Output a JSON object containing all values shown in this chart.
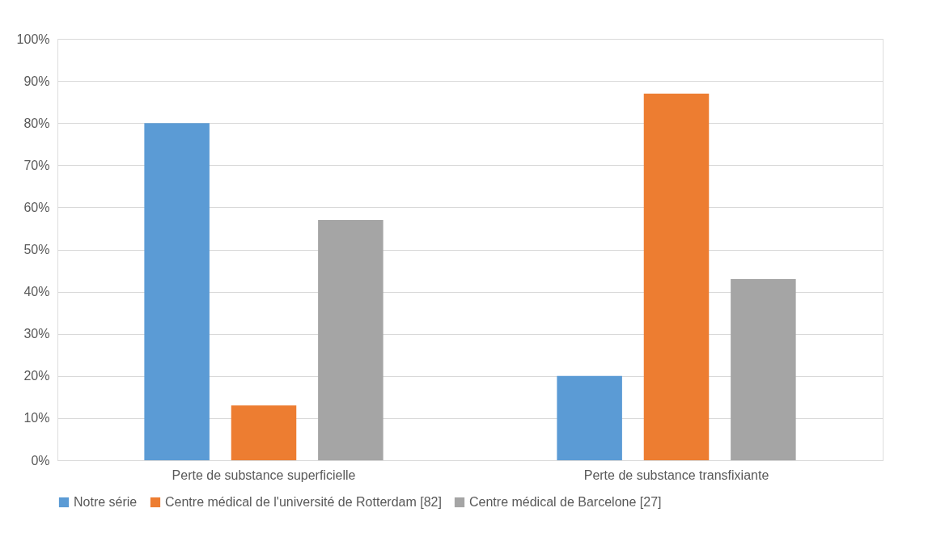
{
  "chart_data": {
    "type": "bar",
    "categories": [
      "Perte de substance superficielle",
      "Perte de substance transfixiante"
    ],
    "series": [
      {
        "name": "Notre série",
        "color": "#5b9bd5",
        "values": [
          80,
          20
        ]
      },
      {
        "name": "Centre médical de l'université de Rotterdam [82]",
        "color": "#ed7d31",
        "values": [
          13,
          87
        ]
      },
      {
        "name": "Centre médical de Barcelone [27]",
        "color": "#a5a5a5",
        "values": [
          57,
          43
        ]
      }
    ],
    "ylim": [
      0,
      100
    ],
    "yticks": [
      {
        "value": 0,
        "label": "0%"
      },
      {
        "value": 10,
        "label": "10%"
      },
      {
        "value": 20,
        "label": "20%"
      },
      {
        "value": 30,
        "label": "30%"
      },
      {
        "value": 40,
        "label": "40%"
      },
      {
        "value": 50,
        "label": "50%"
      },
      {
        "value": 60,
        "label": "60%"
      },
      {
        "value": 70,
        "label": "70%"
      },
      {
        "value": 80,
        "label": "80%"
      },
      {
        "value": 90,
        "label": "90%"
      },
      {
        "value": 100,
        "label": "100%"
      }
    ],
    "grid": "y",
    "legend": "bottom"
  }
}
